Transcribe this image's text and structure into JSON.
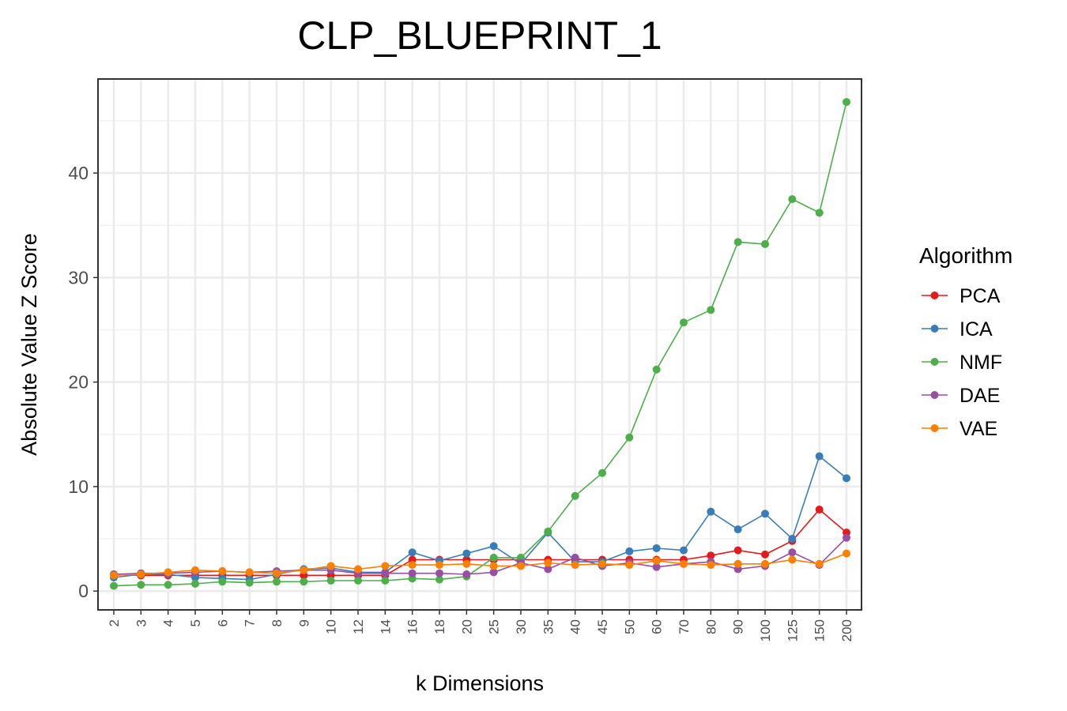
{
  "chart_data": {
    "type": "line",
    "title": "CLP_BLUEPRINT_1",
    "xlabel": "k Dimensions",
    "ylabel": "Absolute Value Z Score",
    "categories": [
      "2",
      "3",
      "4",
      "5",
      "6",
      "7",
      "8",
      "9",
      "10",
      "12",
      "14",
      "16",
      "18",
      "20",
      "25",
      "30",
      "35",
      "40",
      "45",
      "50",
      "60",
      "70",
      "80",
      "90",
      "100",
      "125",
      "150",
      "200"
    ],
    "yticks": [
      0,
      10,
      20,
      30,
      40
    ],
    "ytick_labels": [
      "0",
      "10",
      "20",
      "30",
      "40"
    ],
    "ylim": [
      -1.8,
      49
    ],
    "grid": true,
    "legend_title": "Algorithm",
    "legend_position": "right",
    "series": [
      {
        "name": "PCA",
        "color": "#e41a1c",
        "values": [
          1.6,
          1.5,
          1.5,
          1.5,
          1.5,
          1.5,
          1.5,
          1.5,
          1.5,
          1.5,
          1.5,
          3.0,
          3.0,
          3.0,
          3.0,
          3.0,
          3.0,
          3.0,
          3.0,
          3.0,
          3.0,
          3.0,
          3.4,
          3.9,
          3.5,
          4.8,
          7.8,
          5.6
        ]
      },
      {
        "name": "ICA",
        "color": "#377eb8",
        "values": [
          1.3,
          1.6,
          1.6,
          1.3,
          1.2,
          1.1,
          1.6,
          2.1,
          2.2,
          1.8,
          1.8,
          3.7,
          2.9,
          3.6,
          4.3,
          2.6,
          5.6,
          2.8,
          2.8,
          3.8,
          4.1,
          3.9,
          7.6,
          5.9,
          7.4,
          5.0,
          12.9,
          10.8
        ]
      },
      {
        "name": "NMF",
        "color": "#4daf4a",
        "values": [
          0.5,
          0.6,
          0.6,
          0.7,
          0.9,
          0.8,
          0.9,
          0.9,
          1.0,
          1.0,
          1.0,
          1.2,
          1.1,
          1.4,
          3.2,
          3.2,
          5.7,
          9.1,
          11.3,
          14.7,
          21.2,
          25.7,
          26.9,
          33.4,
          33.2,
          37.5,
          36.2,
          46.8
        ]
      },
      {
        "name": "DAE",
        "color": "#984ea3",
        "values": [
          1.6,
          1.7,
          1.7,
          1.8,
          1.9,
          1.8,
          1.9,
          2.0,
          2.0,
          1.7,
          1.7,
          1.7,
          1.7,
          1.6,
          1.8,
          2.7,
          2.1,
          3.2,
          2.4,
          2.7,
          2.3,
          2.6,
          2.8,
          2.1,
          2.4,
          3.7,
          2.5,
          5.1
        ]
      },
      {
        "name": "VAE",
        "color": "#ff7f00",
        "values": [
          1.5,
          1.6,
          1.8,
          2.0,
          1.9,
          1.8,
          1.7,
          2.0,
          2.4,
          2.1,
          2.4,
          2.5,
          2.5,
          2.6,
          2.4,
          2.4,
          2.7,
          2.5,
          2.6,
          2.5,
          2.9,
          2.6,
          2.5,
          2.6,
          2.6,
          3.0,
          2.6,
          3.6
        ]
      }
    ]
  }
}
